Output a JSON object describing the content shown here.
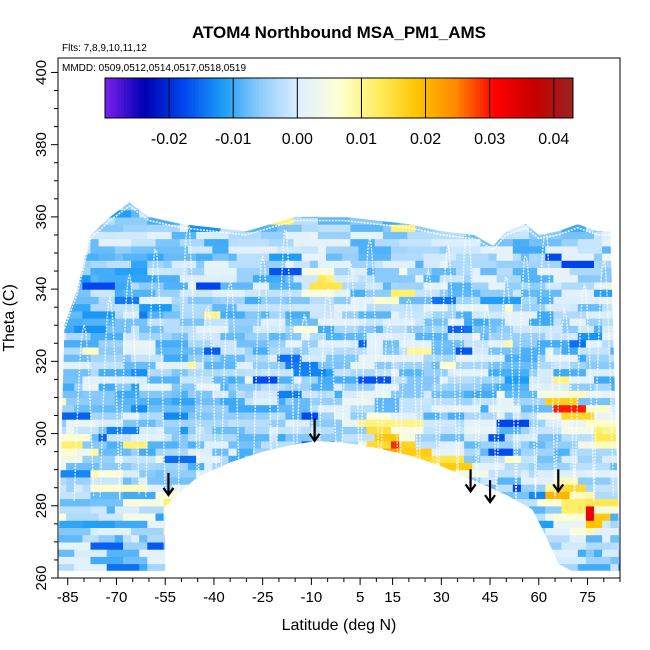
{
  "chart_data": {
    "type": "heatmap",
    "title": "ATOM4 Northbound MSA_PM1_AMS",
    "subtitle_flights": "Flts: 7,8,9,10,11,12",
    "subtitle_dates": "MMDD: 0509,0512,0514,0517,0518,0519",
    "xlabel": "Latitude (deg N)",
    "ylabel": "Theta (C)",
    "xlim": [
      -88,
      85
    ],
    "ylim": [
      260,
      404
    ],
    "x_ticks": [
      -85,
      -70,
      -55,
      -40,
      -25,
      -10,
      5,
      15,
      30,
      45,
      60,
      75
    ],
    "x_tick_labels": [
      "-85",
      "-70",
      "-55",
      "-40",
      "-25",
      "-10",
      "5",
      "15",
      "30",
      "45",
      "60",
      "75"
    ],
    "y_ticks": [
      260,
      280,
      300,
      320,
      340,
      360,
      380,
      400
    ],
    "y_tick_labels": [
      "260",
      "280",
      "300",
      "320",
      "340",
      "360",
      "380",
      "400"
    ],
    "colorbar": {
      "range": [
        -0.03,
        0.043
      ],
      "ticks": [
        -0.02,
        -0.01,
        0.0,
        0.01,
        0.02,
        0.03,
        0.04
      ],
      "tick_labels": [
        "-0.02",
        "-0.01",
        "0.00",
        "0.01",
        "0.02",
        "0.03",
        "0.04"
      ],
      "colors": [
        "#7b22ee",
        "#0000b4",
        "#0044ee",
        "#1a9bf7",
        "#90cdfb",
        "#e0f0ff",
        "#ffffd6",
        "#ffee60",
        "#ffc400",
        "#ff8800",
        "#ff0000",
        "#c80000",
        "#9c2222"
      ]
    },
    "arrows": [
      {
        "lat": -54,
        "theta": 283
      },
      {
        "lat": -9,
        "theta": 298
      },
      {
        "lat": 39,
        "theta": 284
      },
      {
        "lat": 45,
        "theta": 281
      },
      {
        "lat": 66,
        "theta": 284
      }
    ],
    "lower_boundary": [
      [
        -88,
        262
      ],
      [
        -55,
        262
      ],
      [
        -55,
        280
      ],
      [
        -50,
        284
      ],
      [
        -45,
        288
      ],
      [
        -35,
        292
      ],
      [
        -25,
        295
      ],
      [
        -15,
        297
      ],
      [
        -8,
        298
      ],
      [
        0,
        297.5
      ],
      [
        10,
        296
      ],
      [
        20,
        294
      ],
      [
        30,
        291
      ],
      [
        40,
        287
      ],
      [
        50,
        283
      ],
      [
        58,
        279
      ],
      [
        62,
        272
      ],
      [
        66,
        264
      ],
      [
        70,
        262
      ],
      [
        85,
        262
      ]
    ],
    "upper_boundary": [
      [
        -86,
        330
      ],
      [
        -82,
        340
      ],
      [
        -78,
        355
      ],
      [
        -72,
        360
      ],
      [
        -66,
        364
      ],
      [
        -60,
        360
      ],
      [
        -50,
        358
      ],
      [
        -30,
        356
      ],
      [
        -15,
        360
      ],
      [
        0,
        360
      ],
      [
        10,
        359
      ],
      [
        20,
        358
      ],
      [
        30,
        356
      ],
      [
        40,
        355
      ],
      [
        46,
        352
      ],
      [
        50,
        356
      ],
      [
        56,
        358
      ],
      [
        60,
        355
      ],
      [
        66,
        356
      ],
      [
        72,
        358
      ],
      [
        78,
        356
      ],
      [
        82,
        356
      ]
    ],
    "anomalies": [
      {
        "lat": 15,
        "theta": 297,
        "value": 0.032
      },
      {
        "lat": 22,
        "theta": 293,
        "value": 0.022
      },
      {
        "lat": 10,
        "theta": 301,
        "value": 0.015
      },
      {
        "lat": 33,
        "theta": 291,
        "value": 0.02
      },
      {
        "lat": 76,
        "theta": 278,
        "value": 0.035
      },
      {
        "lat": 80,
        "theta": 300,
        "value": 0.015
      },
      {
        "lat": 67,
        "theta": 283,
        "value": 0.022
      },
      {
        "lat": 69,
        "theta": 307,
        "value": 0.03
      },
      {
        "lat": -85,
        "theta": 297,
        "value": 0.012
      },
      {
        "lat": -53,
        "theta": 281,
        "value": 0.012
      },
      {
        "lat": -6,
        "theta": 342,
        "value": 0.015
      },
      {
        "lat": -80,
        "theta": 332,
        "value": -0.015
      },
      {
        "lat": -45,
        "theta": 308,
        "value": -0.013
      },
      {
        "lat": -65,
        "theta": 346,
        "value": -0.012
      }
    ]
  }
}
